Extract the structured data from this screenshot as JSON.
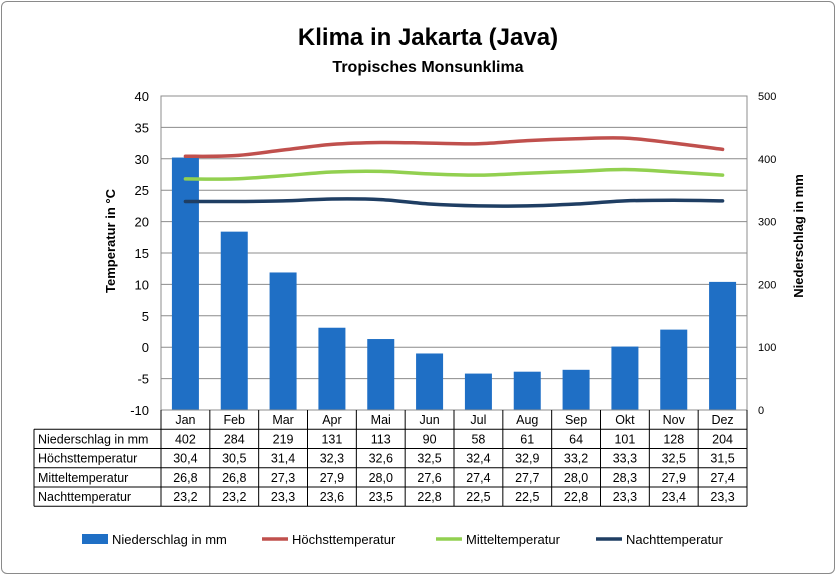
{
  "chart_data": {
    "type": "bar",
    "title": "Klima in Jakarta (Java)",
    "subtitle": "Tropisches Monsunklima",
    "categories": [
      "Jan",
      "Feb",
      "Mar",
      "Apr",
      "Mai",
      "Jun",
      "Jul",
      "Aug",
      "Sep",
      "Okt",
      "Nov",
      "Dez"
    ],
    "ylabel_left": "Temperatur in °C",
    "ylabel_right": "Niederschlag in mm",
    "ylim_left": [
      -10,
      40
    ],
    "ylim_right": [
      0,
      500
    ],
    "yticks_left": [
      "40",
      "35",
      "30",
      "25",
      "20",
      "15",
      "10",
      "5",
      "0",
      "-5",
      "-10"
    ],
    "yticks_right": [
      "500",
      "400",
      "300",
      "200",
      "100",
      "0"
    ],
    "grid": true,
    "legend_position": "bottom",
    "series": [
      {
        "name": "Niederschlag in mm",
        "kind": "bar",
        "axis": "right",
        "color": "#1f6fc5",
        "values": [
          402,
          284,
          219,
          131,
          113,
          90,
          58,
          61,
          64,
          101,
          128,
          204
        ],
        "labels": [
          "402",
          "284",
          "219",
          "131",
          "113",
          "90",
          "58",
          "61",
          "64",
          "101",
          "128",
          "204"
        ]
      },
      {
        "name": "Höchsttemperatur",
        "kind": "line",
        "axis": "left",
        "color": "#c0504d",
        "values": [
          30.4,
          30.5,
          31.4,
          32.3,
          32.6,
          32.5,
          32.4,
          32.9,
          33.2,
          33.3,
          32.5,
          31.5
        ],
        "labels": [
          "30,4",
          "30,5",
          "31,4",
          "32,3",
          "32,6",
          "32,5",
          "32,4",
          "32,9",
          "33,2",
          "33,3",
          "32,5",
          "31,5"
        ]
      },
      {
        "name": "Mitteltemperatur",
        "kind": "line",
        "axis": "left",
        "color": "#92d050",
        "values": [
          26.8,
          26.8,
          27.3,
          27.9,
          28.0,
          27.6,
          27.4,
          27.7,
          28.0,
          28.3,
          27.9,
          27.4
        ],
        "labels": [
          "26,8",
          "26,8",
          "27,3",
          "27,9",
          "28,0",
          "27,6",
          "27,4",
          "27,7",
          "28,0",
          "28,3",
          "27,9",
          "27,4"
        ]
      },
      {
        "name": "Nachttemperatur",
        "kind": "line",
        "axis": "left",
        "color": "#1f3e63",
        "values": [
          23.2,
          23.2,
          23.3,
          23.6,
          23.5,
          22.8,
          22.5,
          22.5,
          22.8,
          23.3,
          23.4,
          23.3
        ],
        "labels": [
          "23,2",
          "23,2",
          "23,3",
          "23,6",
          "23,5",
          "22,8",
          "22,5",
          "22,5",
          "22,8",
          "23,3",
          "23,4",
          "23,3"
        ]
      }
    ]
  }
}
